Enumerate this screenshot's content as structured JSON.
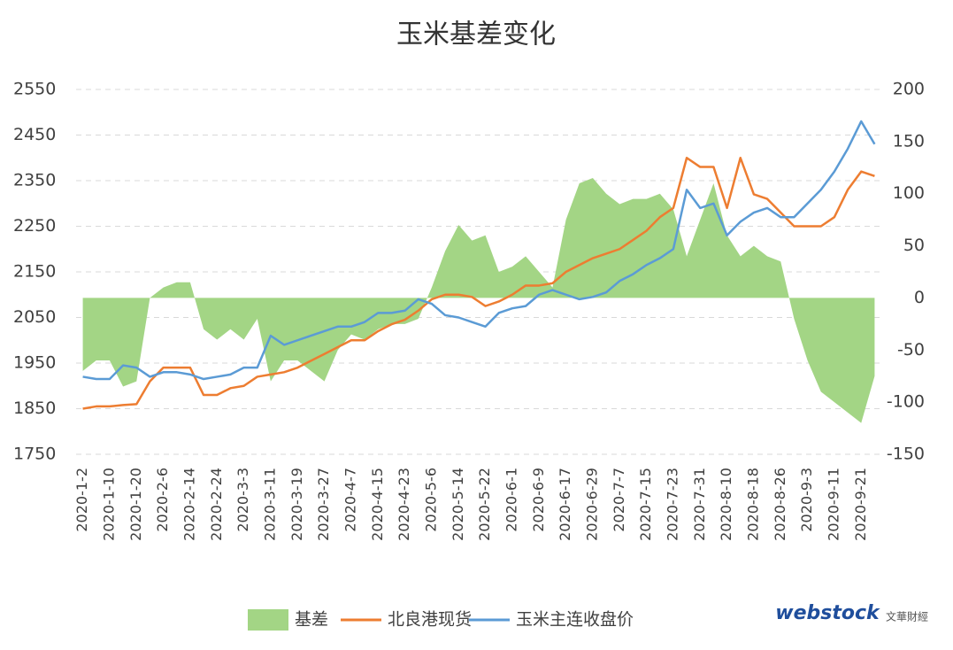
{
  "chart_data": {
    "type": "line",
    "title": "玉米基差变化",
    "categories": [
      "2020-1-2",
      null,
      "2020-1-10",
      null,
      "2020-1-20",
      null,
      "2020-2-6",
      null,
      "2020-2-14",
      null,
      "2020-2-24",
      null,
      "2020-3-3",
      null,
      "2020-3-11",
      null,
      "2020-3-19",
      null,
      "2020-3-27",
      null,
      "2020-4-7",
      null,
      "2020-4-15",
      null,
      "2020-4-23",
      null,
      "2020-5-6",
      null,
      "2020-5-14",
      null,
      "2020-5-22",
      null,
      "2020-6-1",
      null,
      "2020-6-9",
      null,
      "2020-6-17",
      null,
      "2020-6-29",
      null,
      "2020-7-7",
      null,
      "2020-7-15",
      null,
      "2020-7-23",
      null,
      "2020-7-31",
      null,
      "2020-8-10",
      null,
      "2020-8-18",
      null,
      "2020-8-26",
      null,
      "2020-9-3",
      null,
      "2020-9-11",
      null,
      "2020-9-21",
      null
    ],
    "series": [
      {
        "name": "基差",
        "type": "area",
        "axis": "y2",
        "color": "#a3d585",
        "values": [
          -70,
          -60,
          -60,
          -85,
          -80,
          0,
          10,
          15,
          15,
          -30,
          -40,
          -30,
          -40,
          -20,
          -80,
          -60,
          -60,
          -70,
          -80,
          -50,
          -35,
          -40,
          -30,
          -25,
          -25,
          -20,
          10,
          45,
          70,
          55,
          60,
          25,
          30,
          40,
          25,
          10,
          75,
          110,
          115,
          100,
          90,
          95,
          95,
          100,
          85,
          40,
          75,
          110,
          60,
          40,
          50,
          40,
          35,
          -20,
          -60,
          -90,
          -100,
          -110,
          -120,
          -75
        ]
      },
      {
        "name": "北良港现货",
        "type": "line",
        "color": "#ed7d31",
        "values": [
          1850,
          1855,
          1855,
          1858,
          1860,
          1910,
          1940,
          1940,
          1940,
          1880,
          1880,
          1895,
          1900,
          1920,
          1925,
          1930,
          1940,
          1955,
          1970,
          1985,
          2000,
          2000,
          2020,
          2035,
          2045,
          2065,
          2090,
          2100,
          2100,
          2095,
          2075,
          2085,
          2100,
          2120,
          2120,
          2125,
          2150,
          2165,
          2180,
          2190,
          2200,
          2220,
          2240,
          2270,
          2290,
          2400,
          2380,
          2380,
          2290,
          2400,
          2320,
          2310,
          2280,
          2250,
          2250,
          2250,
          2270,
          2330,
          2370,
          2360
        ]
      },
      {
        "name": "玉米主连收盘价",
        "type": "line",
        "color": "#5b9bd5",
        "values": [
          1920,
          1915,
          1915,
          1945,
          1940,
          1920,
          1930,
          1930,
          1925,
          1915,
          1920,
          1925,
          1940,
          1940,
          2010,
          1990,
          2000,
          2010,
          2020,
          2030,
          2030,
          2040,
          2060,
          2060,
          2065,
          2090,
          2080,
          2055,
          2050,
          2040,
          2030,
          2060,
          2070,
          2075,
          2100,
          2110,
          2100,
          2090,
          2095,
          2105,
          2130,
          2145,
          2165,
          2180,
          2200,
          2330,
          2290,
          2300,
          2230,
          2260,
          2280,
          2290,
          2270,
          2270,
          2300,
          2330,
          2370,
          2420,
          2480,
          2430
        ]
      }
    ],
    "ylim": [
      1750,
      2550
    ],
    "yticks": [
      1750,
      1850,
      1950,
      2050,
      2150,
      2250,
      2350,
      2450,
      2550
    ],
    "y2lim": [
      -150,
      200
    ],
    "y2ticks": [
      -150,
      -100,
      -50,
      0,
      50,
      100,
      150,
      200
    ],
    "grid": true,
    "legend": "bottom",
    "watermark": {
      "logo": "webstock",
      "text": "文華財經"
    }
  }
}
